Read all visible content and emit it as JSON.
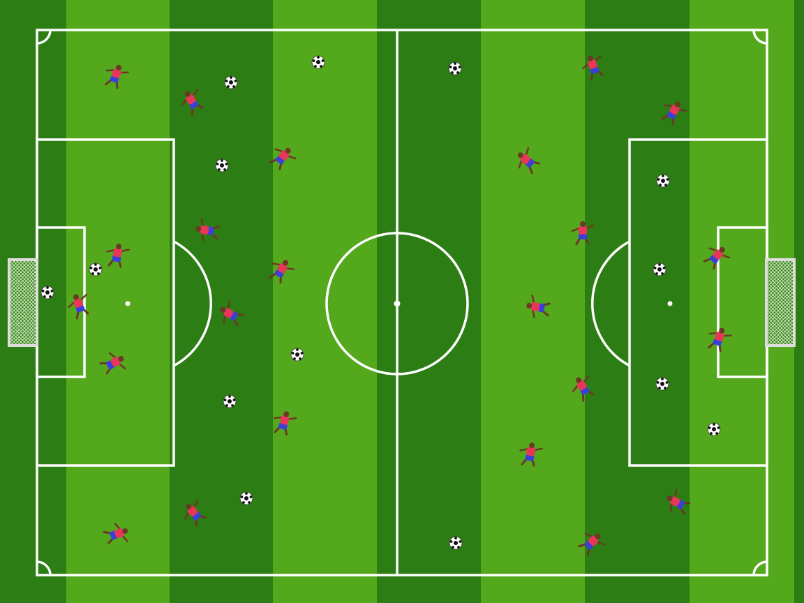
{
  "pitch": {
    "stripe_dark": "#2c7d14",
    "stripe_light": "#54a81c",
    "line_color": "#ffffff",
    "goal_net_color": "#e8f0e0"
  },
  "teams": {
    "kit_shirt": "#e8365a",
    "kit_shorts": "#3b3fd8",
    "skin": "#6b3a22"
  },
  "ball": {
    "icon": "soccer-ball-icon",
    "primary": "#ffffff",
    "patch": "#111111"
  }
}
